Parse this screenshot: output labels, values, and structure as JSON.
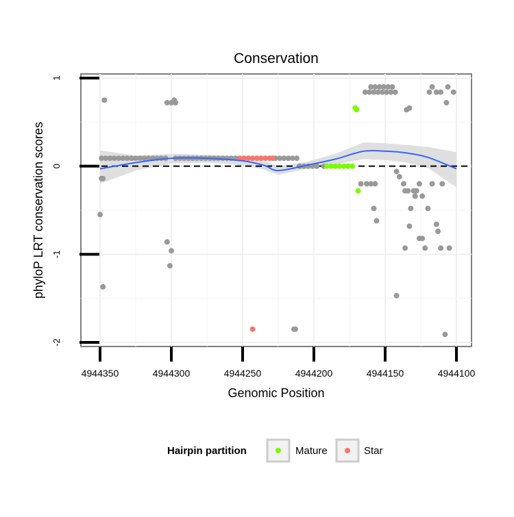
{
  "chart_data": {
    "type": "scatter",
    "title": "Conservation",
    "xlabel": "Genomic Position",
    "ylabel": "phyloP LRT conservation scores",
    "x_reversed": true,
    "xlim": [
      4944100,
      4944350
    ],
    "ylim": [
      -2,
      1
    ],
    "x_ticks": [
      4944350,
      4944300,
      4944250,
      4944200,
      4944150,
      4944100
    ],
    "x_tick_labels": [
      "4944350",
      "4944300",
      "4944250",
      "4944200",
      "4944150",
      "4944100"
    ],
    "y_ticks": [
      1,
      0,
      -1,
      -2
    ],
    "y_tick_labels": [
      "1",
      "0",
      "-1",
      "-2"
    ],
    "reference_line": {
      "y": 0,
      "style": "dashed"
    },
    "grid": true,
    "legend": {
      "title": "Hairpin partition",
      "position": "bottom",
      "entries": [
        {
          "label": "Mature",
          "color": "#7CFC00"
        },
        {
          "label": "Star",
          "color": "#F8766D"
        }
      ]
    },
    "colors": {
      "other": "#999999",
      "Mature": "#7CFC00",
      "Star": "#F8766D",
      "smooth": "#3366FF",
      "band": "#d9d9d9"
    },
    "series": [
      {
        "name": "Other",
        "color": "#999999",
        "points": [
          [
            4944349,
            -0.14
          ],
          [
            4944348,
            -0.14
          ],
          [
            4944350,
            -0.55
          ],
          [
            4944348,
            -1.37
          ],
          [
            4944347,
            0.75
          ],
          [
            4944349,
            0.09
          ],
          [
            4944346,
            0.09
          ],
          [
            4944343,
            0.09
          ],
          [
            4944340,
            0.09
          ],
          [
            4944337,
            0.09
          ],
          [
            4944334,
            0.09
          ],
          [
            4944331,
            0.09
          ],
          [
            4944328,
            0.09
          ],
          [
            4944325,
            0.09
          ],
          [
            4944322,
            0.09
          ],
          [
            4944319,
            0.09
          ],
          [
            4944316,
            0.09
          ],
          [
            4944313,
            0.09
          ],
          [
            4944310,
            0.09
          ],
          [
            4944307,
            0.09
          ],
          [
            4944304,
            0.09
          ],
          [
            4944297,
            0.09
          ],
          [
            4944294,
            0.09
          ],
          [
            4944291,
            0.09
          ],
          [
            4944288,
            0.09
          ],
          [
            4944285,
            0.09
          ],
          [
            4944282,
            0.09
          ],
          [
            4944279,
            0.09
          ],
          [
            4944276,
            0.09
          ],
          [
            4944273,
            0.09
          ],
          [
            4944270,
            0.09
          ],
          [
            4944267,
            0.09
          ],
          [
            4944264,
            0.09
          ],
          [
            4944261,
            0.09
          ],
          [
            4944258,
            0.09
          ],
          [
            4944255,
            0.09
          ],
          [
            4944227,
            0.09
          ],
          [
            4944224,
            0.09
          ],
          [
            4944221,
            0.09
          ],
          [
            4944218,
            0.09
          ],
          [
            4944215,
            0.09
          ],
          [
            4944212,
            0.09
          ],
          [
            4944303,
            0.72
          ],
          [
            4944300,
            0.72
          ],
          [
            4944298,
            0.75
          ],
          [
            4944297,
            0.72
          ],
          [
            4944303,
            -0.86
          ],
          [
            4944300,
            -0.96
          ],
          [
            4944301,
            -1.13
          ],
          [
            4944214,
            -1.85
          ],
          [
            4944213,
            -1.85
          ],
          [
            4944210,
            0.0
          ],
          [
            4944207,
            0.0
          ],
          [
            4944204,
            0.0
          ],
          [
            4944201,
            0.0
          ],
          [
            4944198,
            0.0
          ],
          [
            4944193,
            0.0
          ],
          [
            4944164,
            0.84
          ],
          [
            4944161,
            0.84
          ],
          [
            4944158,
            0.84
          ],
          [
            4944155,
            0.84
          ],
          [
            4944152,
            0.84
          ],
          [
            4944149,
            0.84
          ],
          [
            4944146,
            0.84
          ],
          [
            4944143,
            0.84
          ],
          [
            4944160,
            0.9
          ],
          [
            4944157,
            0.9
          ],
          [
            4944154,
            0.9
          ],
          [
            4944151,
            0.9
          ],
          [
            4944148,
            0.9
          ],
          [
            4944145,
            0.9
          ],
          [
            4944135,
            0.64
          ],
          [
            4944133,
            0.66
          ],
          [
            4944119,
            0.84
          ],
          [
            4944117,
            0.9
          ],
          [
            4944114,
            0.84
          ],
          [
            4944111,
            0.84
          ],
          [
            4944106,
            0.9
          ],
          [
            4944102,
            0.84
          ],
          [
            4944107,
            0.72
          ],
          [
            4944167,
            -0.2
          ],
          [
            4944163,
            -0.2
          ],
          [
            4944160,
            -0.2
          ],
          [
            4944157,
            -0.2
          ],
          [
            4944158,
            -0.48
          ],
          [
            4944156,
            -0.62
          ],
          [
            4944142,
            -0.06
          ],
          [
            4944140,
            -0.12
          ],
          [
            4944137,
            -0.2
          ],
          [
            4944136,
            -0.28
          ],
          [
            4944134,
            -0.28
          ],
          [
            4944133,
            -0.68
          ],
          [
            4944132,
            -0.48
          ],
          [
            4944130,
            -0.28
          ],
          [
            4944128,
            -0.28
          ],
          [
            4944126,
            -0.2
          ],
          [
            4944129,
            -0.34
          ],
          [
            4944124,
            -0.34
          ],
          [
            4944136,
            -0.93
          ],
          [
            4944126,
            -0.82
          ],
          [
            4944124,
            -0.82
          ],
          [
            4944122,
            -0.93
          ],
          [
            4944142,
            -1.47
          ],
          [
            4944120,
            -0.48
          ],
          [
            4944117,
            -0.2
          ],
          [
            4944114,
            -0.66
          ],
          [
            4944113,
            -0.74
          ],
          [
            4944111,
            -0.93
          ],
          [
            4944105,
            -0.93
          ],
          [
            4944110,
            -0.2
          ],
          [
            4944108,
            -1.91
          ]
        ]
      },
      {
        "name": "Mature",
        "color": "#7CFC00",
        "points": [
          [
            4944191,
            0.0
          ],
          [
            4944188,
            0.0
          ],
          [
            4944185,
            0.0
          ],
          [
            4944182,
            0.0
          ],
          [
            4944179,
            0.0
          ],
          [
            4944176,
            0.0
          ],
          [
            4944173,
            0.0
          ],
          [
            4944171,
            0.66
          ],
          [
            4944170,
            0.64
          ],
          [
            4944169,
            -0.28
          ]
        ]
      },
      {
        "name": "Star",
        "color": "#F8766D",
        "points": [
          [
            4944252,
            0.09
          ],
          [
            4944249,
            0.09
          ],
          [
            4944246,
            0.09
          ],
          [
            4944243,
            0.09
          ],
          [
            4944240,
            0.09
          ],
          [
            4944237,
            0.09
          ],
          [
            4944234,
            0.09
          ],
          [
            4944231,
            0.09
          ],
          [
            4944229,
            0.09
          ],
          [
            4944243,
            -1.85
          ]
        ]
      }
    ],
    "smooth": {
      "x": [
        4944350,
        4944325,
        4944300,
        4944275,
        4944250,
        4944235,
        4944225,
        4944205,
        4944185,
        4944165,
        4944150,
        4944135,
        4944120,
        4944100
      ],
      "y": [
        -0.03,
        0.04,
        0.09,
        0.09,
        0.06,
        0.01,
        -0.05,
        0.01,
        0.08,
        0.17,
        0.17,
        0.15,
        0.1,
        -0.03
      ],
      "se_upper": [
        0.18,
        0.12,
        0.14,
        0.13,
        0.11,
        0.06,
        0.0,
        0.05,
        0.14,
        0.27,
        0.26,
        0.24,
        0.22,
        0.16
      ],
      "se_lower": [
        -0.2,
        -0.05,
        0.03,
        0.04,
        0.01,
        -0.04,
        -0.1,
        -0.03,
        0.02,
        0.08,
        0.07,
        0.04,
        -0.02,
        -0.24
      ]
    }
  }
}
